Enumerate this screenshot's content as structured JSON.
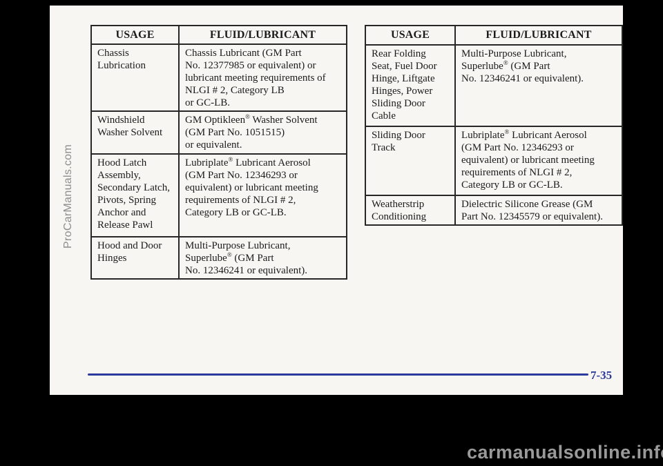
{
  "document": {
    "page_number": "7-35"
  },
  "watermarks": {
    "side": "ProCarManuals.com",
    "bottom": "carmanualsonline.info"
  },
  "colors": {
    "accent_navy": "#2c3a9b",
    "page_background": "#f7f6f2",
    "watermark_gray": "#8d8d8d",
    "text": "#1b1b1b"
  },
  "tables": [
    {
      "name": "left-lubricants-table",
      "headers": [
        "USAGE",
        "FLUID/LUBRICANT"
      ],
      "rows": [
        {
          "usage": "Chassis\nLubrication",
          "fluid": "Chassis Lubricant (GM Part\nNo. 12377985 or equivalent) or\nlubricant meeting requirements of\nNLGI # 2, Category LB\nor GC-LB."
        },
        {
          "usage": "Windshield\nWasher Solvent",
          "fluid": "GM Optikleen® Washer Solvent\n(GM Part No. 1051515)\nor equivalent."
        },
        {
          "usage": "Hood Latch\nAssembly,\nSecondary Latch,\nPivots, Spring\nAnchor and\nRelease Pawl",
          "fluid": "Lubriplate® Lubricant Aerosol\n(GM Part No. 12346293 or\nequivalent) or lubricant meeting\nrequirements of NLGI # 2,\nCategory LB or GC-LB."
        },
        {
          "usage": "Hood and Door\nHinges",
          "fluid": "Multi-Purpose Lubricant,\nSuperlube® (GM Part\nNo. 12346241 or equivalent)."
        }
      ]
    },
    {
      "name": "right-lubricants-table",
      "headers": [
        "USAGE",
        "FLUID/LUBRICANT"
      ],
      "rows": [
        {
          "usage": "Rear Folding\nSeat, Fuel Door\nHinge, Liftgate\nHinges, Power\nSliding Door\nCable",
          "fluid": "Multi-Purpose Lubricant,\nSuperlube® (GM Part\nNo. 12346241 or equivalent)."
        },
        {
          "usage": "Sliding Door\nTrack",
          "fluid": "Lubriplate® Lubricant Aerosol\n(GM Part No. 12346293 or\nequivalent) or lubricant meeting\nrequirements of NLGI # 2,\nCategory LB or GC-LB."
        },
        {
          "usage": "Weatherstrip\nConditioning",
          "fluid": "Dielectric Silicone Grease (GM\nPart No. 12345579 or equivalent)."
        }
      ]
    }
  ]
}
